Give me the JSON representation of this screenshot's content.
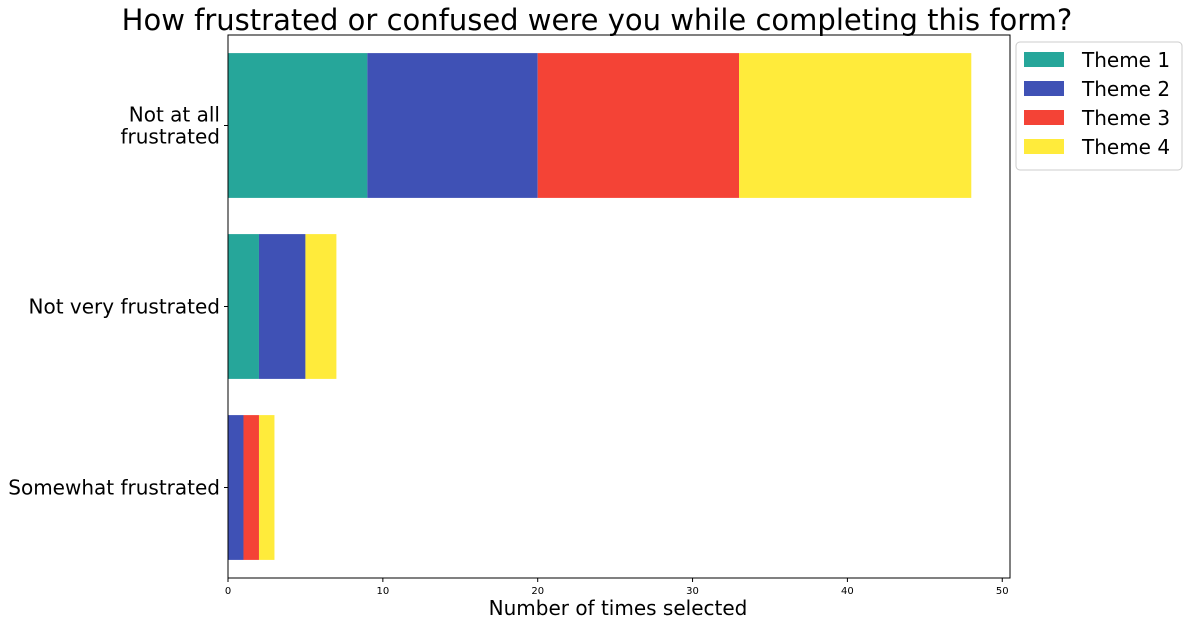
{
  "chart_data": {
    "type": "bar",
    "orientation": "horizontal",
    "stacked": true,
    "title": "How frustrated or confused were you while completing this form?",
    "xlabel": "Number of times selected",
    "ylabel": "",
    "xlim": [
      0,
      50.5
    ],
    "x_ticks": [
      0,
      10,
      20,
      30,
      40,
      50
    ],
    "grid": false,
    "legend_position": "outside-top-right",
    "categories": [
      [
        "Not at all",
        "frustrated"
      ],
      [
        "Not very frustrated"
      ],
      [
        "Somewhat frustrated"
      ]
    ],
    "series": [
      {
        "name": "Theme 1",
        "color": "#26a69a",
        "values": [
          9,
          2,
          0
        ]
      },
      {
        "name": "Theme 2",
        "color": "#3f51b5",
        "values": [
          11,
          3,
          1
        ]
      },
      {
        "name": "Theme 3",
        "color": "#f44336",
        "values": [
          13,
          0,
          1
        ]
      },
      {
        "name": "Theme 4",
        "color": "#ffeb3b",
        "values": [
          15,
          2,
          1
        ]
      }
    ]
  }
}
